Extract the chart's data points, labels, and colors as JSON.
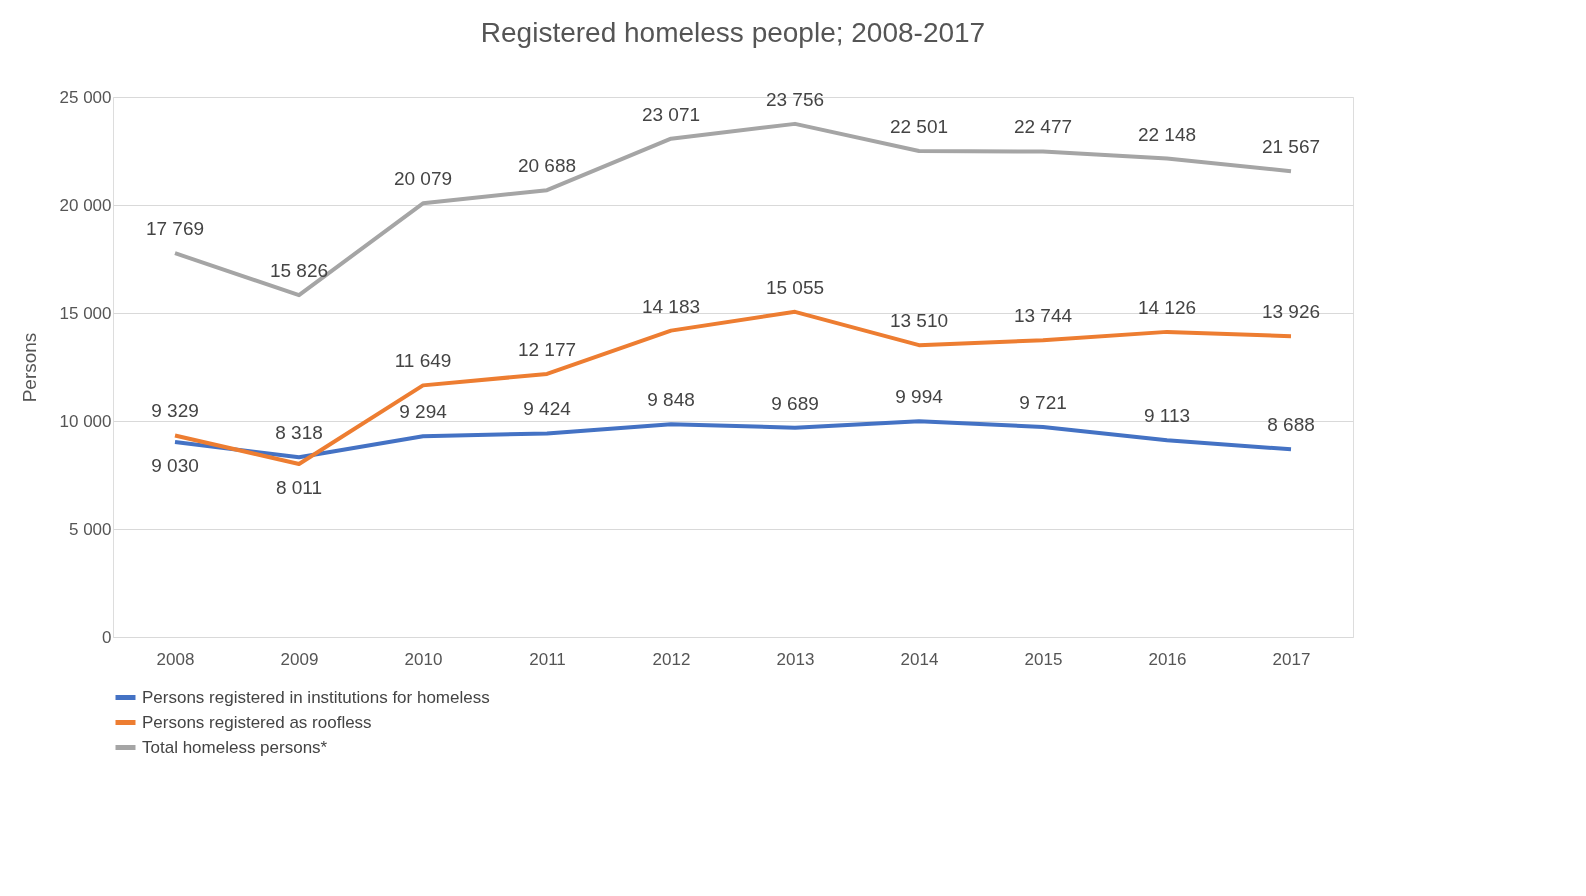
{
  "chart_data": {
    "type": "line",
    "title": "Registered homeless people; 2008-2017",
    "ylabel": "Persons",
    "categories": [
      "2008",
      "2009",
      "2010",
      "2011",
      "2012",
      "2013",
      "2014",
      "2015",
      "2016",
      "2017"
    ],
    "series": [
      {
        "name": "Persons registered in institutions for homeless",
        "color": "#4472c4",
        "values": [
          9030,
          8318,
          9294,
          9424,
          9848,
          9689,
          9994,
          9721,
          9113,
          8688
        ],
        "value_labels": [
          "9 030",
          "8 318",
          "9 294",
          "9 424",
          "9 848",
          "9 689",
          "9 994",
          "9 721",
          "9 113",
          "8 688"
        ]
      },
      {
        "name": "Persons registered as roofless",
        "color": "#ed7d31",
        "values": [
          9329,
          8011,
          11649,
          12177,
          14183,
          15055,
          13510,
          13744,
          14126,
          13926
        ],
        "value_labels": [
          "9 329",
          "8 011",
          "11 649",
          "12 177",
          "14 183",
          "15 055",
          "13 510",
          "13 744",
          "14 126",
          "13 926"
        ]
      },
      {
        "name": "Total homeless persons*",
        "color": "#a5a5a5",
        "values": [
          17769,
          15826,
          20079,
          20688,
          23071,
          23756,
          22501,
          22477,
          22148,
          21567
        ],
        "value_labels": [
          "17 769",
          "15 826",
          "20 079",
          "20 688",
          "23 071",
          "23 756",
          "22 501",
          "22 477",
          "22 148",
          "21 567"
        ]
      }
    ],
    "ylim": [
      0,
      25000
    ],
    "yticks": [
      {
        "value": 0,
        "label": "0"
      },
      {
        "value": 5000,
        "label": "5 000"
      },
      {
        "value": 10000,
        "label": "10 000"
      },
      {
        "value": 15000,
        "label": "15 000"
      },
      {
        "value": 20000,
        "label": "20 000"
      },
      {
        "value": 25000,
        "label": "25 000"
      }
    ],
    "grid": "y",
    "legend": "bottom",
    "marker": "none",
    "line_style": "solid"
  }
}
